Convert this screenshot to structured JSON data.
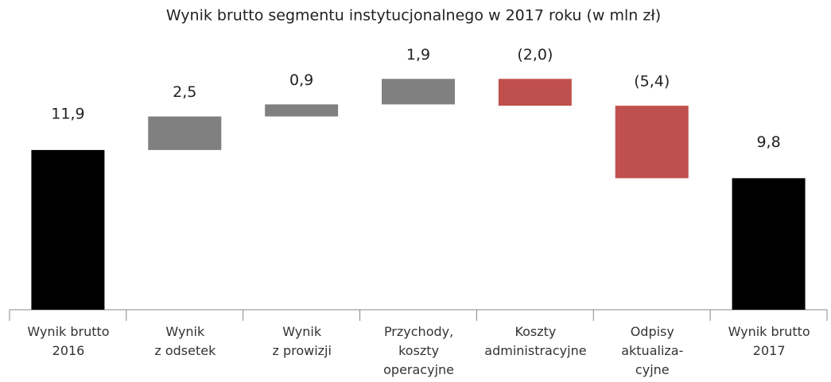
{
  "chart_data": {
    "type": "waterfall",
    "title": "Wynik brutto segmentu instytucjonalnego w 2017 roku (w  mln zł)",
    "categories": [
      "Wynik brutto\n2016",
      "Wynik\nz odsetek",
      "Wynik\nz prowizji",
      "Przychody,\nkoszty\noperacyjne",
      "Koszty\nadministracyjne",
      "Odpisy\naktualiza-\ncyjne",
      "Wynik brutto\n2017"
    ],
    "values": [
      11.9,
      2.5,
      0.9,
      1.9,
      -2.0,
      -5.4,
      9.8
    ],
    "value_labels": [
      "11,9",
      "2,5",
      "0,9",
      "1,9",
      "(2,0)",
      "(5,4)",
      "9,8"
    ],
    "colors": [
      "#000000",
      "#808080",
      "#808080",
      "#808080",
      "#c0504d",
      "#c0504d",
      "#000000"
    ],
    "ylim": [
      0,
      20
    ]
  }
}
